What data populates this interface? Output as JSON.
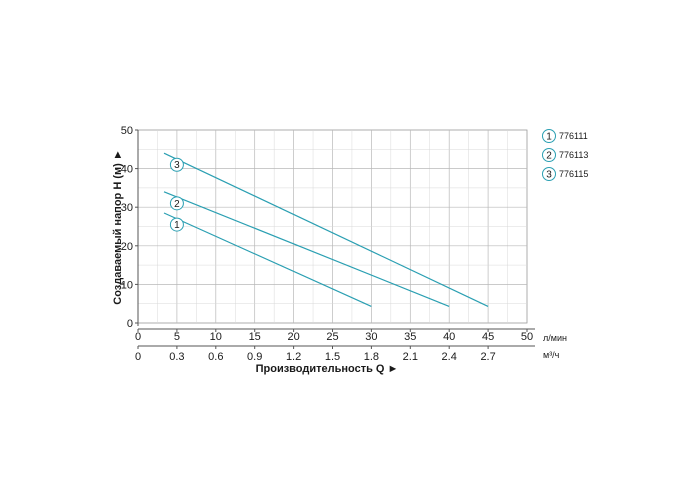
{
  "chart_data": {
    "type": "line",
    "ylabel": "Создаваемый напор H (м) ►",
    "xlabel": "Производительность Q ►",
    "xlim": [
      0,
      50
    ],
    "ylim": [
      0,
      50
    ],
    "grid": true,
    "x_ticks": [
      0,
      5,
      10,
      15,
      20,
      25,
      30,
      35,
      40,
      45,
      50
    ],
    "y_ticks": [
      0,
      10,
      20,
      30,
      40,
      50
    ],
    "x_unit": "л/мин",
    "secondary_x_ticks": [
      "0",
      "0.3",
      "0.6",
      "0.9",
      "1.2",
      "1.5",
      "1.8",
      "2.1",
      "2.4",
      "2.7"
    ],
    "secondary_x_unit": "м³/ч",
    "line_color": "#2a9fb2",
    "legend_position": "right",
    "series": [
      {
        "name": "776111",
        "marker": "1",
        "x": [
          1.8,
          30
        ],
        "y": [
          28.5,
          4.3
        ],
        "marker_at": [
          5,
          25.5
        ]
      },
      {
        "name": "776113",
        "marker": "2",
        "x": [
          1.8,
          40
        ],
        "y": [
          34,
          4.3
        ],
        "marker_at": [
          5,
          31
        ]
      },
      {
        "name": "776115",
        "marker": "3",
        "x": [
          1.8,
          45
        ],
        "y": [
          44,
          4.3
        ],
        "marker_at": [
          5,
          41
        ]
      }
    ]
  }
}
